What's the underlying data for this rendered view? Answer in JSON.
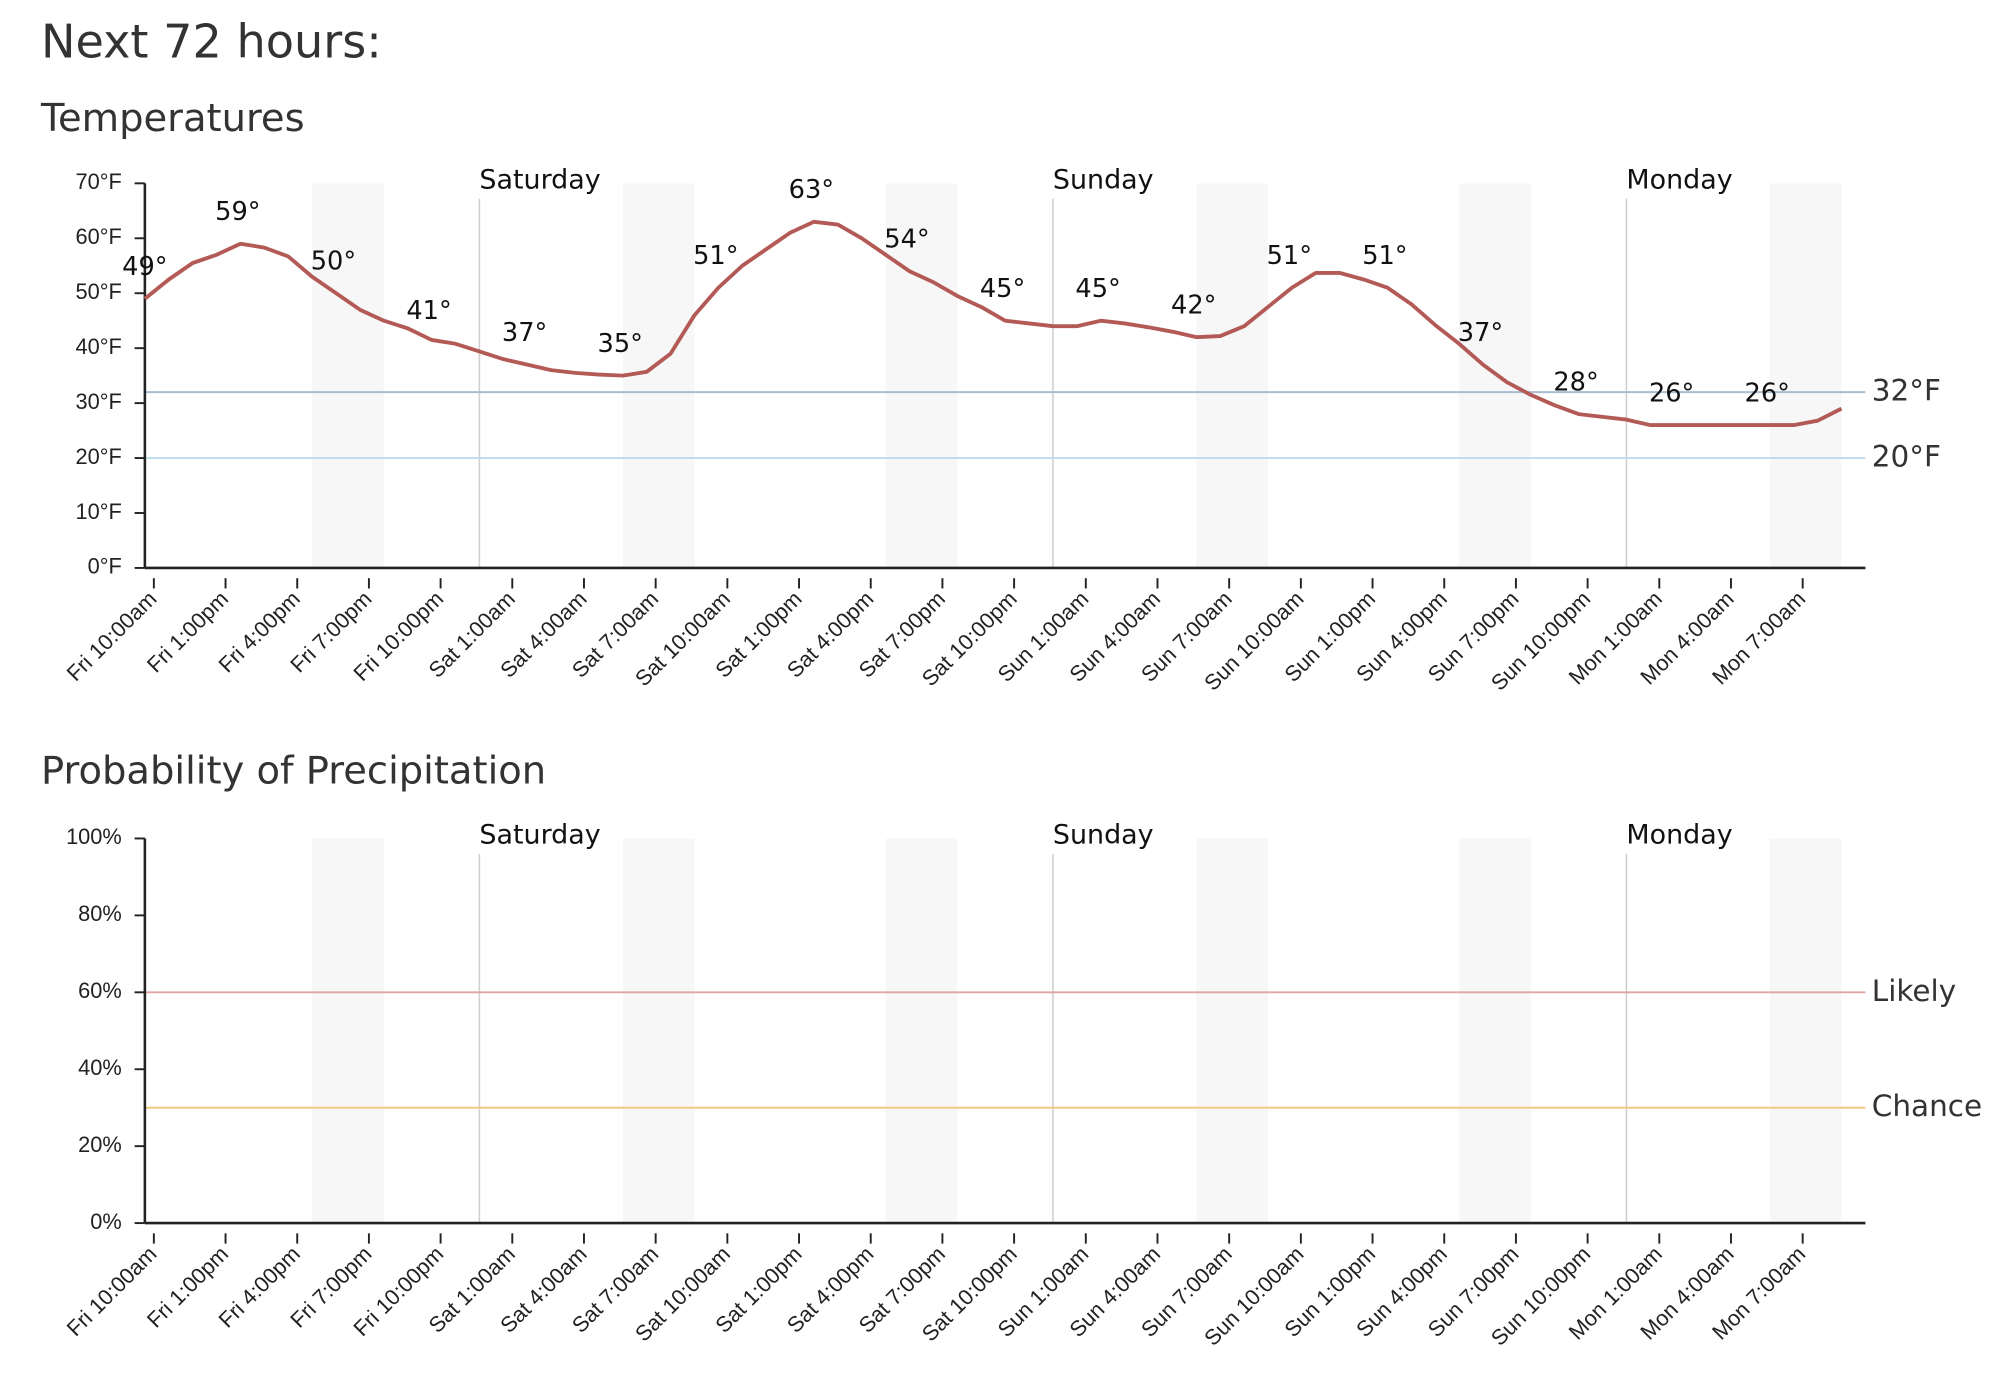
{
  "header": {
    "title": "Next 72 hours:"
  },
  "chart_data": [
    {
      "type": "line",
      "title": "Temperatures",
      "color": "#b35a57",
      "x": [
        0,
        1,
        2,
        3,
        4,
        5,
        6,
        7,
        8,
        9,
        10,
        11,
        12,
        13,
        14,
        15,
        16,
        17,
        18,
        19,
        20,
        21,
        22,
        23,
        24,
        25,
        26,
        27,
        28,
        29,
        30,
        31,
        32,
        33,
        34,
        35,
        36,
        37,
        38,
        39,
        40,
        41,
        42,
        43,
        44,
        45,
        46,
        47,
        48,
        49,
        50,
        51,
        52,
        53,
        54,
        55,
        56,
        57,
        58,
        59,
        60,
        61,
        62,
        63,
        64,
        65,
        66,
        67,
        68,
        69,
        70,
        71
      ],
      "values": [
        49,
        52.5,
        55.5,
        57,
        59,
        58.3,
        56.7,
        53,
        50,
        47,
        45,
        43.6,
        41.5,
        40.8,
        39.4,
        38,
        37,
        36,
        35.5,
        35.2,
        35,
        35.7,
        39,
        46,
        51,
        55,
        58,
        61,
        63,
        62.5,
        60,
        57,
        54,
        52,
        49.5,
        47.5,
        45,
        44.5,
        44,
        44,
        45,
        44.5,
        43.8,
        43,
        42,
        42.2,
        44,
        47.5,
        51,
        53.7,
        53.7,
        52.5,
        51,
        48,
        44.2,
        40.8,
        37,
        33.8,
        31.5,
        29.6,
        28,
        27.5,
        27,
        26,
        26,
        26,
        26,
        26,
        26,
        26,
        26.8,
        29
      ],
      "annotations": [
        {
          "x": 0,
          "value": 49,
          "label": "49°"
        },
        {
          "x": 4,
          "value": 59,
          "label": "59°"
        },
        {
          "x": 8,
          "value": 50,
          "label": "50°"
        },
        {
          "x": 12,
          "value": 41,
          "label": "41°"
        },
        {
          "x": 16,
          "value": 37,
          "label": "37°"
        },
        {
          "x": 20,
          "value": 35,
          "label": "35°"
        },
        {
          "x": 24,
          "value": 51,
          "label": "51°"
        },
        {
          "x": 28,
          "value": 63,
          "label": "63°"
        },
        {
          "x": 32,
          "value": 54,
          "label": "54°"
        },
        {
          "x": 36,
          "value": 45,
          "label": "45°"
        },
        {
          "x": 40,
          "value": 45,
          "label": "45°"
        },
        {
          "x": 44,
          "value": 42,
          "label": "42°"
        },
        {
          "x": 48,
          "value": 51,
          "label": "51°"
        },
        {
          "x": 52,
          "value": 51,
          "label": "51°"
        },
        {
          "x": 56,
          "value": 37,
          "label": "37°"
        },
        {
          "x": 60,
          "value": 28,
          "label": "28°"
        },
        {
          "x": 64,
          "value": 26,
          "label": "26°"
        },
        {
          "x": 68,
          "value": 26,
          "label": "26°"
        }
      ],
      "reference_lines": [
        {
          "value": 32,
          "label": "32°F",
          "color": "#a9bdd0"
        },
        {
          "value": 20,
          "label": "20°F",
          "color": "#bcdcec"
        }
      ],
      "day_markers": [
        {
          "x": 14,
          "label": "Saturday"
        },
        {
          "x": 38,
          "label": "Sunday"
        },
        {
          "x": 62,
          "label": "Monday"
        }
      ],
      "xlim": [
        0,
        72
      ],
      "xticks": [
        {
          "value": 0,
          "label": "Fri 10:00am"
        },
        {
          "value": 3,
          "label": "Fri 1:00pm"
        },
        {
          "value": 6,
          "label": "Fri 4:00pm"
        },
        {
          "value": 9,
          "label": "Fri 7:00pm"
        },
        {
          "value": 12,
          "label": "Fri 10:00pm"
        },
        {
          "value": 15,
          "label": "Sat 1:00am"
        },
        {
          "value": 18,
          "label": "Sat 4:00am"
        },
        {
          "value": 21,
          "label": "Sat 7:00am"
        },
        {
          "value": 24,
          "label": "Sat 10:00am"
        },
        {
          "value": 27,
          "label": "Sat 1:00pm"
        },
        {
          "value": 30,
          "label": "Sat 4:00pm"
        },
        {
          "value": 33,
          "label": "Sat 7:00pm"
        },
        {
          "value": 36,
          "label": "Sat 10:00pm"
        },
        {
          "value": 39,
          "label": "Sun 1:00am"
        },
        {
          "value": 42,
          "label": "Sun 4:00am"
        },
        {
          "value": 45,
          "label": "Sun 7:00am"
        },
        {
          "value": 48,
          "label": "Sun 10:00am"
        },
        {
          "value": 51,
          "label": "Sun 1:00pm"
        },
        {
          "value": 54,
          "label": "Sun 4:00pm"
        },
        {
          "value": 57,
          "label": "Sun 7:00pm"
        },
        {
          "value": 60,
          "label": "Sun 10:00pm"
        },
        {
          "value": 63,
          "label": "Mon 1:00am"
        },
        {
          "value": 66,
          "label": "Mon 4:00am"
        },
        {
          "value": 69,
          "label": "Mon 7:00am"
        }
      ],
      "ylim": [
        0,
        70
      ],
      "yticks": [
        {
          "value": 0,
          "label": "0°F"
        },
        {
          "value": 10,
          "label": "10°F"
        },
        {
          "value": 20,
          "label": "20°F"
        },
        {
          "value": 30,
          "label": "30°F"
        },
        {
          "value": 40,
          "label": "40°F"
        },
        {
          "value": 50,
          "label": "50°F"
        },
        {
          "value": 60,
          "label": "60°F"
        },
        {
          "value": 70,
          "label": "70°F"
        }
      ]
    },
    {
      "type": "line",
      "title": "Probability of Precipitation",
      "reference_lines": [
        {
          "value": 60,
          "label": "Likely",
          "color": "#e3a4a4"
        },
        {
          "value": 30,
          "label": "Chance",
          "color": "#f2c778"
        }
      ],
      "day_markers": [
        {
          "x": 14,
          "label": "Saturday"
        },
        {
          "x": 38,
          "label": "Sunday"
        },
        {
          "x": 62,
          "label": "Monday"
        }
      ],
      "xlim": [
        0,
        72
      ],
      "xticks": [
        {
          "value": 0,
          "label": "Fri 10:00am"
        },
        {
          "value": 3,
          "label": "Fri 1:00pm"
        },
        {
          "value": 6,
          "label": "Fri 4:00pm"
        },
        {
          "value": 9,
          "label": "Fri 7:00pm"
        },
        {
          "value": 12,
          "label": "Fri 10:00pm"
        },
        {
          "value": 15,
          "label": "Sat 1:00am"
        },
        {
          "value": 18,
          "label": "Sat 4:00am"
        },
        {
          "value": 21,
          "label": "Sat 7:00am"
        },
        {
          "value": 24,
          "label": "Sat 10:00am"
        },
        {
          "value": 27,
          "label": "Sat 1:00pm"
        },
        {
          "value": 30,
          "label": "Sat 4:00pm"
        },
        {
          "value": 33,
          "label": "Sat 7:00pm"
        },
        {
          "value": 36,
          "label": "Sat 10:00pm"
        },
        {
          "value": 39,
          "label": "Sun 1:00am"
        },
        {
          "value": 42,
          "label": "Sun 4:00am"
        },
        {
          "value": 45,
          "label": "Sun 7:00am"
        },
        {
          "value": 48,
          "label": "Sun 10:00am"
        },
        {
          "value": 51,
          "label": "Sun 1:00pm"
        },
        {
          "value": 54,
          "label": "Sun 4:00pm"
        },
        {
          "value": 57,
          "label": "Sun 7:00pm"
        },
        {
          "value": 60,
          "label": "Sun 10:00pm"
        },
        {
          "value": 63,
          "label": "Mon 1:00am"
        },
        {
          "value": 66,
          "label": "Mon 4:00am"
        },
        {
          "value": 69,
          "label": "Mon 7:00am"
        }
      ],
      "ylim": [
        0,
        100
      ],
      "yticks": [
        {
          "value": 0,
          "label": "0%"
        },
        {
          "value": 20,
          "label": "20%"
        },
        {
          "value": 40,
          "label": "40%"
        },
        {
          "value": 60,
          "label": "60%"
        },
        {
          "value": 80,
          "label": "80%"
        },
        {
          "value": 100,
          "label": "100%"
        }
      ]
    }
  ]
}
